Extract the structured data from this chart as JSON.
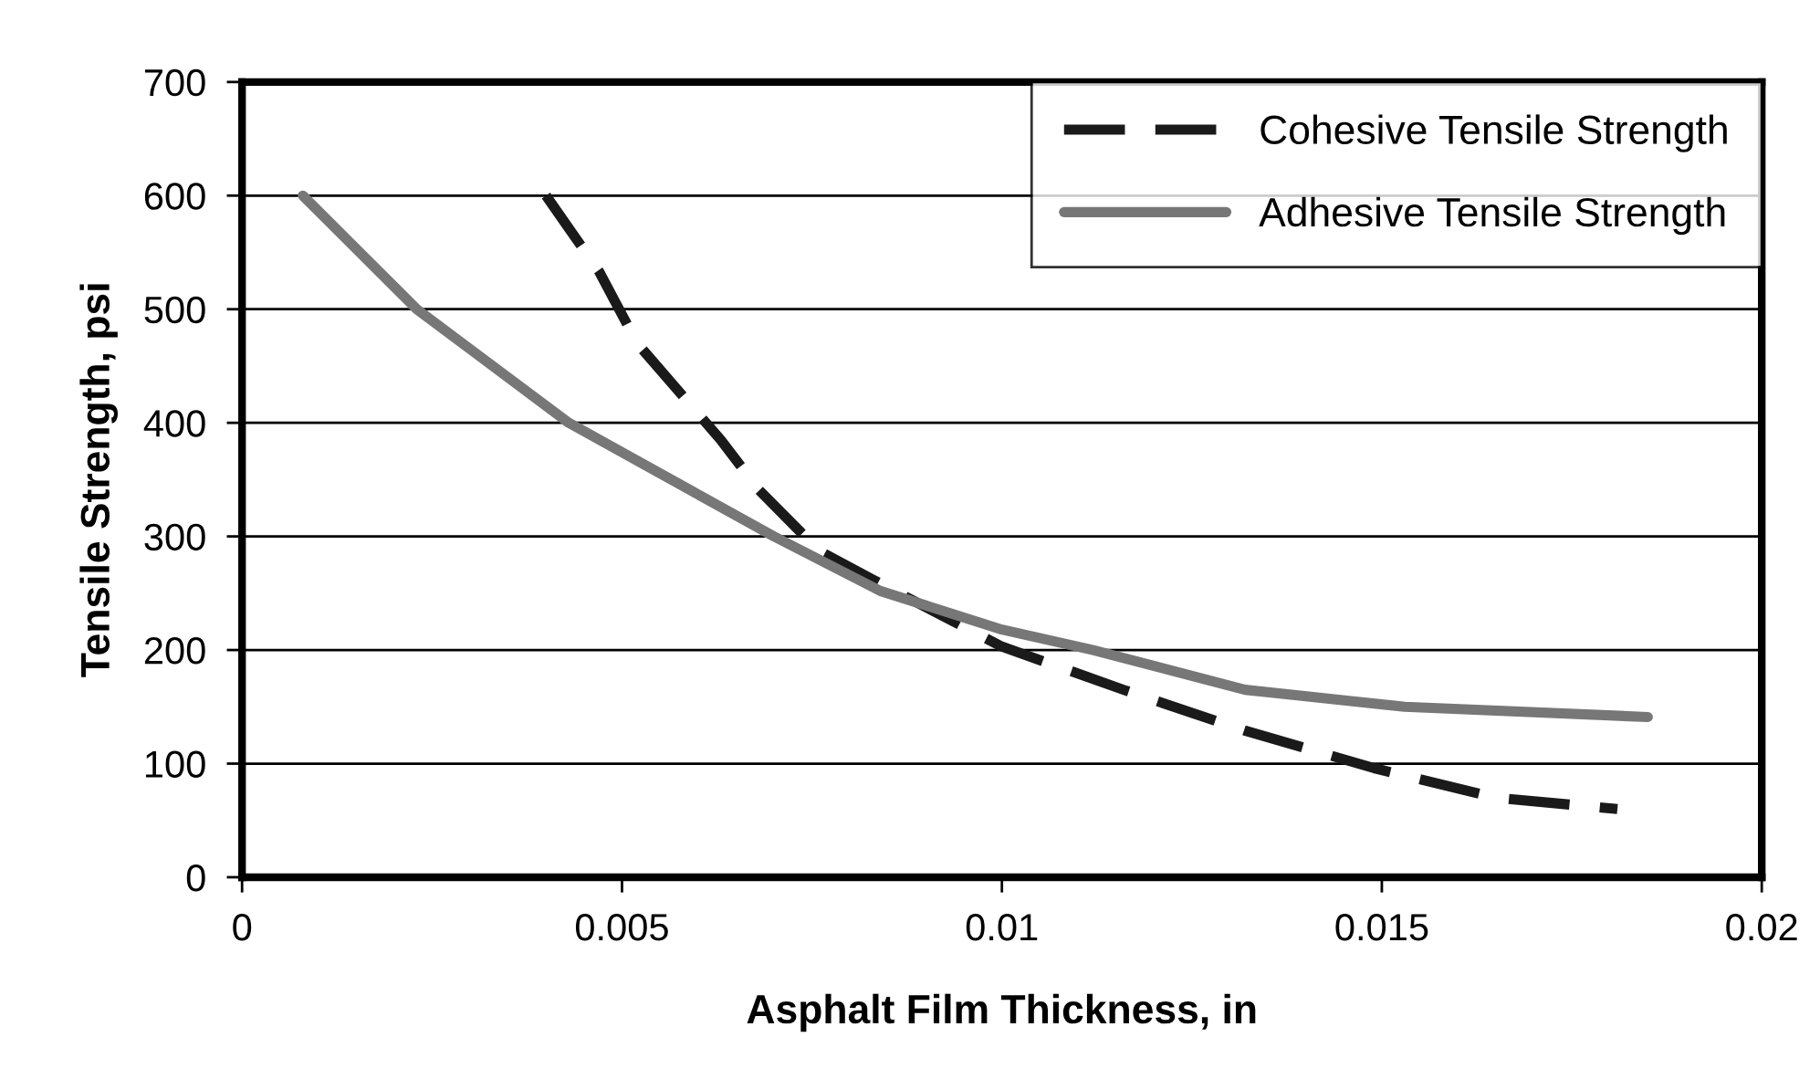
{
  "chart_data": {
    "type": "line",
    "xlabel": "Asphalt Film Thickness, in",
    "ylabel": "Tensile Strength, psi",
    "xlim": [
      0,
      0.02
    ],
    "xticks": [
      0,
      0.005,
      0.01,
      0.015,
      0.02
    ],
    "ylim": [
      0,
      700
    ],
    "yticks": [
      0,
      100,
      200,
      300,
      400,
      500,
      600,
      700
    ],
    "grid": "y",
    "legend": "top right",
    "marker": "none",
    "series": [
      {
        "name": "Cohesive Tensile Strength",
        "color": "#1a1a1a",
        "line_style": "dashed",
        "x": [
          0.004,
          0.0047,
          0.0052,
          0.0063,
          0.0068,
          0.0076,
          0.0083,
          0.01,
          0.0116,
          0.0132,
          0.0149,
          0.0165,
          0.0181
        ],
        "values": [
          600,
          533,
          470,
          385,
          341,
          287,
          262,
          203,
          165,
          129,
          96,
          70,
          60
        ]
      },
      {
        "name": "Adhesive Tensile Strength",
        "color": "#777777",
        "line_style": "solid",
        "x": [
          0.0008,
          0.0023,
          0.0043,
          0.007,
          0.0084,
          0.01,
          0.0112,
          0.0132,
          0.0153,
          0.0185
        ],
        "values": [
          600,
          500,
          400,
          300,
          252,
          218,
          200,
          165,
          150,
          141
        ]
      }
    ]
  }
}
